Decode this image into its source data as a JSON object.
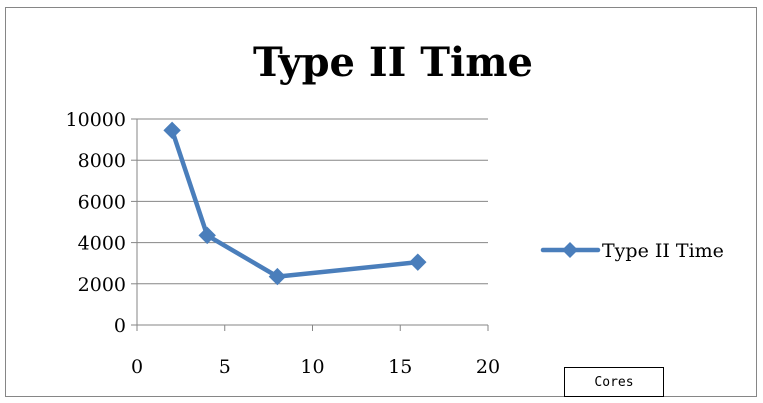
{
  "chart_data": {
    "type": "line",
    "title": "Type II Time",
    "xlabel": "Cores",
    "ylabel": "",
    "xlim": [
      0,
      20
    ],
    "ylim": [
      0,
      10000
    ],
    "xticks": [
      0,
      5,
      10,
      15,
      20
    ],
    "yticks": [
      0,
      2000,
      4000,
      6000,
      8000,
      10000
    ],
    "grid": "horizontal",
    "legend": "right",
    "series": [
      {
        "name": "Type II Time",
        "color": "#4a7ebb",
        "marker": "diamond",
        "points": [
          {
            "x": 2,
            "y": 9450
          },
          {
            "x": 4,
            "y": 4350
          },
          {
            "x": 8,
            "y": 2350
          },
          {
            "x": 16,
            "y": 3050
          }
        ]
      }
    ]
  }
}
